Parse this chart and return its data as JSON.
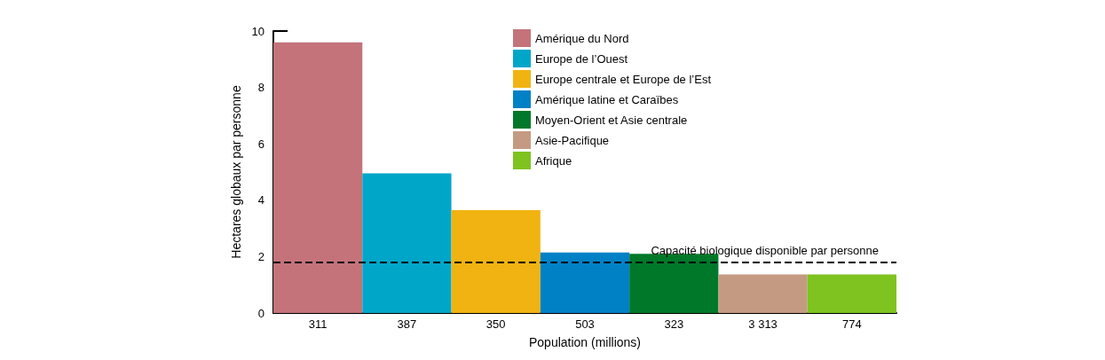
{
  "chart_data": {
    "type": "bar",
    "xlabel": "Population (millions)",
    "ylabel": "Hectares globaux par personne",
    "categories": [
      "311",
      "387",
      "350",
      "503",
      "323",
      "3 313",
      "774"
    ],
    "ylim": [
      0,
      10
    ],
    "yticks": [
      0,
      2,
      4,
      6,
      8,
      10
    ],
    "stacked": true,
    "series": [
      {
        "name": "Amérique du Nord",
        "color": "#c4737a",
        "values": [
          9.6,
          null,
          null,
          null,
          null,
          null,
          null
        ]
      },
      {
        "name": "Europe de l’Ouest",
        "color": "#00a6c8",
        "values": [
          null,
          4.95,
          null,
          null,
          null,
          null,
          null
        ]
      },
      {
        "name": "Europe centrale et Europe de l’Est",
        "color": "#f0b311",
        "values": [
          null,
          null,
          3.65,
          null,
          null,
          null,
          null
        ]
      },
      {
        "name": "Amérique latine et Caraïbes",
        "color": "#0081c6",
        "values": [
          null,
          null,
          null,
          2.15,
          null,
          null,
          null
        ]
      },
      {
        "name": "Moyen-Orient et Asie centrale",
        "color": "#00782a",
        "values": [
          null,
          null,
          null,
          null,
          2.1,
          null,
          null
        ]
      },
      {
        "name": "Asie-Pacifique",
        "color": "#c49a82",
        "values": [
          null,
          null,
          null,
          null,
          null,
          1.37,
          null
        ]
      },
      {
        "name": "Afrique",
        "color": "#7ec31f",
        "values": [
          null,
          null,
          null,
          null,
          null,
          null,
          1.37
        ]
      }
    ],
    "ref_lines": [
      {
        "axis": "y",
        "value": 1.8,
        "label": "Capacité biologique disponible par personne",
        "color": "#000000",
        "line_style": "dashed"
      }
    ],
    "grid": false,
    "legend": "top"
  }
}
